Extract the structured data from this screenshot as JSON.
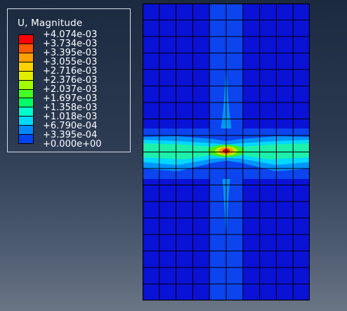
{
  "legend": {
    "title": "U, Magnitude",
    "levels": [
      {
        "label": "+4.074e-03",
        "color": "#ff0000"
      },
      {
        "label": "+3.734e-03",
        "color": "#ff5a00"
      },
      {
        "label": "+3.395e-03",
        "color": "#ffa000"
      },
      {
        "label": "+3.055e-03",
        "color": "#ffd200"
      },
      {
        "label": "+2.716e-03",
        "color": "#e0ee00"
      },
      {
        "label": "+2.376e-03",
        "color": "#a0ff00"
      },
      {
        "label": "+2.037e-03",
        "color": "#44ff22"
      },
      {
        "label": "+1.697e-03",
        "color": "#00ff66"
      },
      {
        "label": "+1.358e-03",
        "color": "#00ffcc"
      },
      {
        "label": "+1.018e-03",
        "color": "#00d8ff"
      },
      {
        "label": "+6.790e-04",
        "color": "#0088ff"
      },
      {
        "label": "+3.395e-04",
        "color": "#0044f0"
      },
      {
        "label": "+0.000e+00",
        "color": "#0000d8"
      }
    ]
  },
  "model": {
    "mesh_columns": 10,
    "mesh_rows": 18,
    "background_color": "#0a12d6",
    "mesh_line_color": "#000000"
  }
}
